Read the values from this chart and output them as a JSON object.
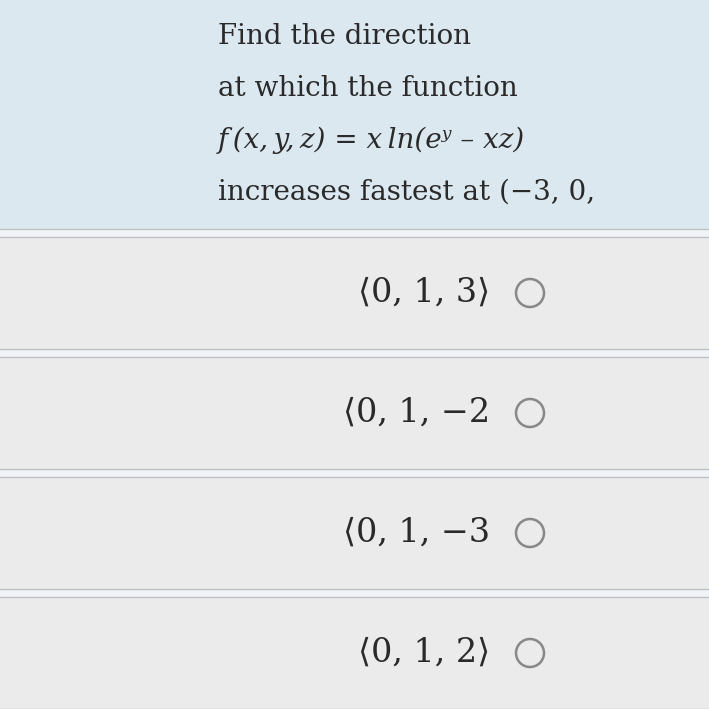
{
  "bg_color": "#f0f4f8",
  "header_bg": "#dce8f0",
  "option_bg": "#ebebeb",
  "divider_color": "#c0c0c0",
  "header_lines": [
    "Find the direction",
    "at which the function",
    "f (x, y, z) = x ln(eʸ – xz)",
    "increases fastest at (−3, 0,"
  ],
  "options": [
    "⟨0, 1, 3⟩",
    "⟨0, 1, −2",
    "⟨0, 1, −3",
    "⟨0, 1, 2⟩"
  ],
  "header_fontsize": 20,
  "option_fontsize": 24,
  "text_color": "#2a2a2a",
  "circle_color": "#888888",
  "circle_linewidth": 1.8
}
